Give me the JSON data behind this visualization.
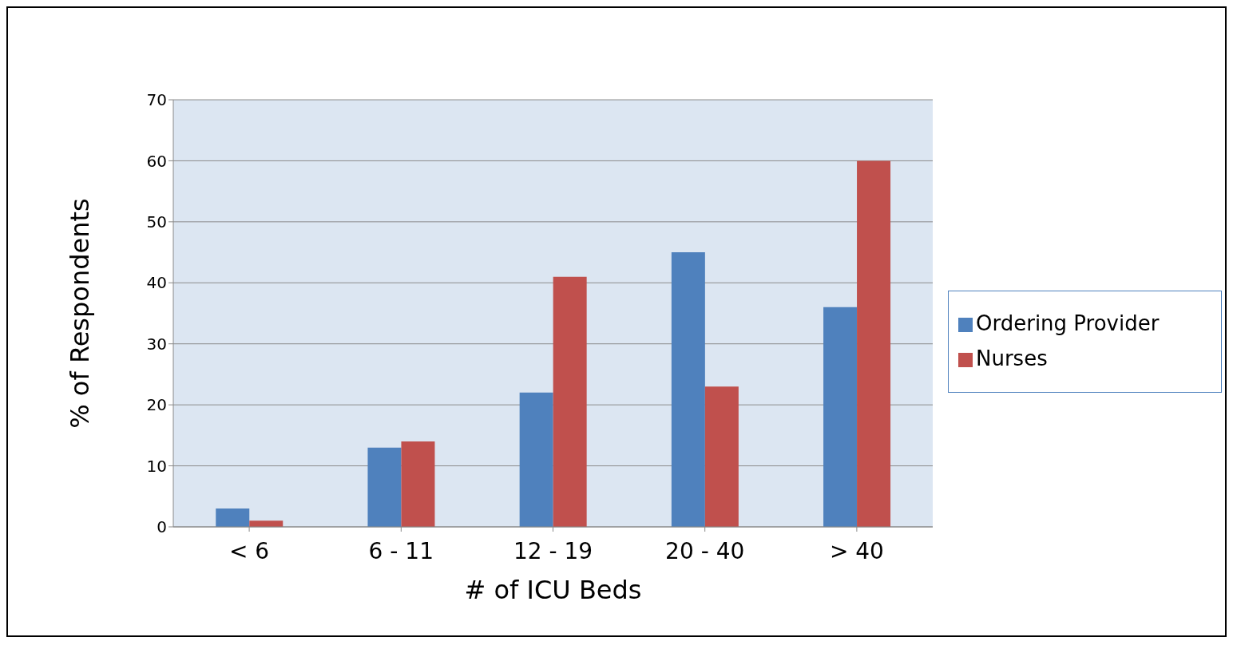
{
  "chart_data": {
    "type": "bar",
    "xlabel": "# of ICU Beds",
    "ylabel": "% of Respondents",
    "categories": [
      "< 6",
      "6 - 11",
      "12 - 19",
      "20 - 40",
      "> 40"
    ],
    "series": [
      {
        "name": "Ordering Provider",
        "color": "#4f81bd",
        "values": [
          3,
          13,
          22,
          45,
          36
        ]
      },
      {
        "name": "Nurses",
        "color": "#c0504d",
        "values": [
          1,
          14,
          41,
          23,
          60
        ]
      }
    ],
    "ylim": [
      0,
      70
    ],
    "yticks": [
      0,
      10,
      20,
      30,
      40,
      50,
      60,
      70
    ],
    "grid": "y",
    "legend": "right"
  }
}
